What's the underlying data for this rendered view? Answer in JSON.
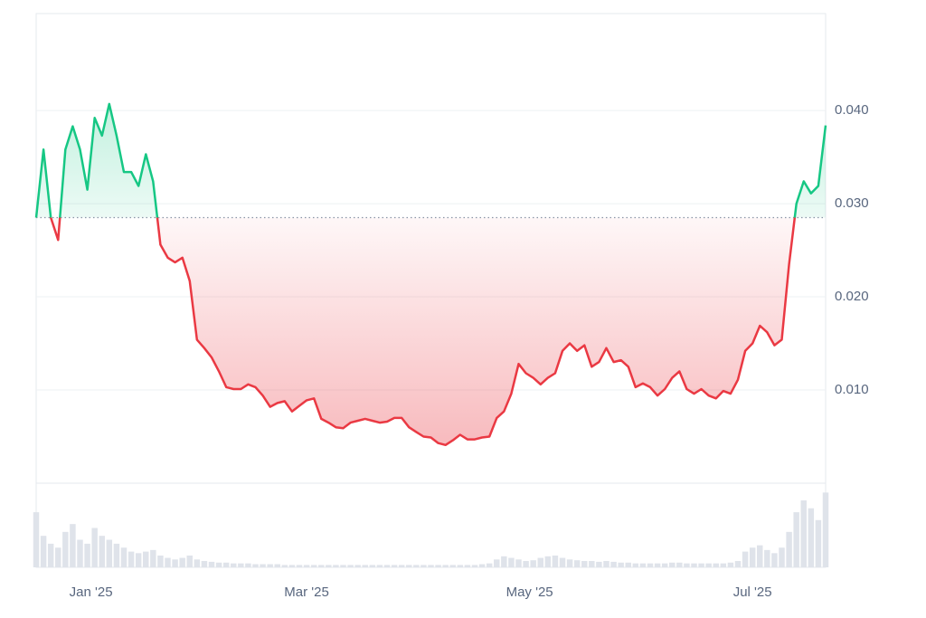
{
  "chart_data": {
    "type": "baseline-line",
    "values": [
      0.0285,
      0.0358,
      0.0285,
      0.0261,
      0.0358,
      0.0383,
      0.0358,
      0.0315,
      0.0392,
      0.0373,
      0.0407,
      0.0373,
      0.0334,
      0.0334,
      0.0319,
      0.0353,
      0.0324,
      0.0256,
      0.0242,
      0.0237,
      0.0242,
      0.0217,
      0.0154,
      0.0145,
      0.0135,
      0.012,
      0.0103,
      0.0101,
      0.0101,
      0.0106,
      0.0103,
      0.0094,
      0.0082,
      0.0086,
      0.0088,
      0.0077,
      0.0083,
      0.0089,
      0.0091,
      0.0069,
      0.0065,
      0.006,
      0.0059,
      0.0065,
      0.0067,
      0.0069,
      0.0067,
      0.0065,
      0.0066,
      0.007,
      0.007,
      0.006,
      0.0055,
      0.005,
      0.0049,
      0.0043,
      0.0041,
      0.0046,
      0.0052,
      0.0047,
      0.0047,
      0.0049,
      0.005,
      0.007,
      0.0077,
      0.0096,
      0.0128,
      0.0118,
      0.0113,
      0.0106,
      0.0113,
      0.0118,
      0.0142,
      0.015,
      0.0142,
      0.0148,
      0.0125,
      0.013,
      0.0145,
      0.013,
      0.0132,
      0.0125,
      0.0103,
      0.0107,
      0.0103,
      0.0094,
      0.0101,
      0.0113,
      0.012,
      0.0101,
      0.0096,
      0.0101,
      0.0094,
      0.0091,
      0.0099,
      0.0096,
      0.0111,
      0.0142,
      0.015,
      0.0169,
      0.0162,
      0.0148,
      0.0154,
      0.0235,
      0.03,
      0.0324,
      0.0311,
      0.0319,
      0.0384
    ],
    "baseline": 0.0285,
    "up_color": "#16c784",
    "down_color": "#ea3943",
    "volume": [
      70,
      40,
      30,
      25,
      45,
      55,
      35,
      30,
      50,
      40,
      35,
      30,
      25,
      20,
      18,
      20,
      22,
      15,
      12,
      10,
      12,
      15,
      10,
      8,
      7,
      6,
      6,
      5,
      5,
      5,
      4,
      4,
      4,
      4,
      3,
      3,
      3,
      3,
      3,
      3,
      3,
      3,
      3,
      3,
      3,
      3,
      3,
      3,
      3,
      3,
      3,
      3,
      3,
      3,
      3,
      3,
      3,
      3,
      3,
      3,
      3,
      4,
      5,
      10,
      14,
      12,
      10,
      8,
      9,
      12,
      14,
      15,
      12,
      10,
      9,
      8,
      8,
      7,
      8,
      7,
      6,
      6,
      5,
      5,
      5,
      5,
      5,
      6,
      6,
      5,
      5,
      5,
      5,
      5,
      5,
      6,
      8,
      20,
      25,
      28,
      22,
      18,
      25,
      45,
      70,
      85,
      75,
      60,
      95
    ],
    "vlim": [
      0,
      100
    ],
    "volume_color": "#dfe3ea",
    "xlim": [
      0,
      108
    ],
    "xticks": [
      {
        "value": 7.5,
        "label": "Jan '25"
      },
      {
        "value": 37,
        "label": "Mar '25"
      },
      {
        "value": 67.5,
        "label": "May '25"
      },
      {
        "value": 98,
        "label": "Jul '25"
      }
    ],
    "ylim": [
      0,
      0.0504
    ],
    "yticks": [
      {
        "value": 0.01,
        "label": "0.010"
      },
      {
        "value": 0.02,
        "label": "0.020"
      },
      {
        "value": 0.03,
        "label": "0.030"
      },
      {
        "value": 0.04,
        "label": "0.040"
      }
    ],
    "grid": true
  }
}
